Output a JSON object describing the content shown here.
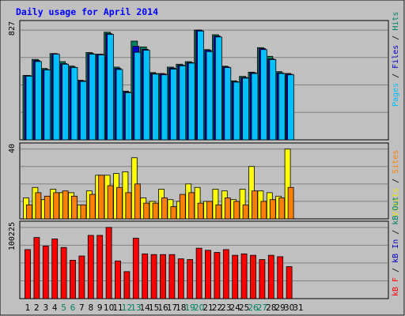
{
  "chart_data": [
    {
      "type": "bar",
      "title": "Daily usage for April 2014",
      "max_label": "827",
      "side_label": [
        {
          "text": "Pages",
          "color": "#00c0ff"
        },
        {
          "text": " / ",
          "color": "#000000"
        },
        {
          "text": "Files",
          "color": "#0000c0"
        },
        {
          "text": " / ",
          "color": "#000000"
        },
        {
          "text": "Hits",
          "color": "#008060"
        }
      ],
      "ylim": [
        0,
        827
      ],
      "series": [
        {
          "name": "Hits",
          "color": "#008060",
          "values": [
            485,
            606,
            538,
            650,
            589,
            556,
            449,
            658,
            645,
            811,
            548,
            367,
            744,
            700,
            507,
            500,
            548,
            570,
            589,
            827,
            680,
            792,
            555,
            445,
            478,
            510,
            695,
            629,
            514,
            500,
            null
          ]
        },
        {
          "name": "Files",
          "color": "#0000c0",
          "values": [
            485,
            598,
            530,
            650,
            575,
            548,
            445,
            650,
            645,
            800,
            538,
            360,
            705,
            682,
            500,
            496,
            540,
            563,
            582,
            827,
            675,
            782,
            550,
            438,
            470,
            505,
            688,
            610,
            505,
            495,
            null
          ]
        },
        {
          "name": "Pages",
          "color": "#00c0ff",
          "values": [
            480,
            590,
            527,
            645,
            570,
            545,
            440,
            645,
            640,
            795,
            530,
            355,
            660,
            675,
            495,
            490,
            533,
            558,
            578,
            820,
            665,
            775,
            545,
            435,
            465,
            500,
            680,
            605,
            500,
            490,
            null
          ]
        }
      ]
    },
    {
      "type": "bar",
      "max_label": "40",
      "side_label": [
        {
          "text": "Visits",
          "color": "#e8e800"
        },
        {
          "text": " / ",
          "color": "#000000"
        },
        {
          "text": "Sites",
          "color": "#ff8000"
        }
      ],
      "ylim": [
        0,
        40
      ],
      "series": [
        {
          "name": "Visits",
          "color": "#ffff00",
          "values": [
            12,
            18,
            11,
            17,
            15,
            15,
            8,
            16,
            25,
            25,
            26,
            27,
            35,
            12,
            10,
            17,
            11,
            10,
            20,
            18,
            10,
            17,
            16,
            11,
            17,
            30,
            16,
            15,
            13,
            40,
            null
          ]
        },
        {
          "name": "Sites",
          "color": "#ff8000",
          "values": [
            8,
            15,
            13,
            15,
            16,
            13,
            8,
            14,
            25,
            19,
            18,
            15,
            20,
            9,
            9,
            12,
            7,
            14,
            15,
            9,
            10,
            8,
            12,
            10,
            8,
            16,
            10,
            11,
            12,
            18,
            null
          ]
        }
      ]
    },
    {
      "type": "bar",
      "max_label": "100225",
      "side_label": [
        {
          "text": "kB F",
          "color": "#ff0000"
        },
        {
          "text": " / ",
          "color": "#000000"
        },
        {
          "text": "kB In",
          "color": "#0000c0"
        },
        {
          "text": " / ",
          "color": "#000000"
        },
        {
          "text": "kB Out",
          "color": "#008060"
        }
      ],
      "ylim": [
        0,
        100225
      ],
      "series": [
        {
          "name": "kB F",
          "color": "#ff0000",
          "values": [
            69000,
            86000,
            74000,
            84000,
            72000,
            54000,
            60000,
            89000,
            89000,
            100225,
            53000,
            38000,
            85000,
            63000,
            62000,
            62000,
            62000,
            56000,
            55000,
            71000,
            68000,
            65000,
            69000,
            61000,
            63000,
            61000,
            55000,
            61000,
            59000,
            45000,
            null
          ]
        }
      ]
    }
  ],
  "x_labels": [
    "1",
    "2",
    "3",
    "4",
    "5",
    "6",
    "7",
    "8",
    "9",
    "10",
    "11",
    "12",
    "13",
    "14",
    "15",
    "16",
    "17",
    "18",
    "19",
    "20",
    "21",
    "22",
    "23",
    "24",
    "25",
    "26",
    "27",
    "28",
    "29",
    "30",
    "31"
  ],
  "weekend_days": [
    "5",
    "6",
    "12",
    "13",
    "19",
    "20",
    "26",
    "27"
  ],
  "colors": {
    "background": "#c0c0c0",
    "grid": "#808080",
    "title": "#0000ff",
    "weekday_label": "#000000",
    "weekend_label": "#008060"
  }
}
